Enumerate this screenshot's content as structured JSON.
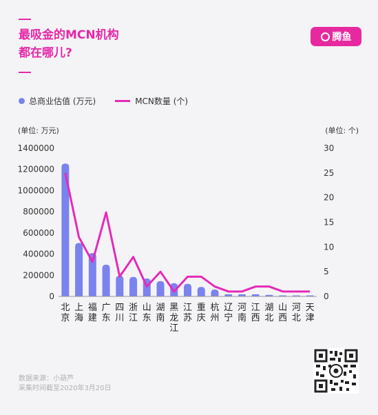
{
  "title": {
    "line1": "最吸金的MCN机构",
    "line2": "都在哪儿?"
  },
  "brand": {
    "logo_text": "腾鱼",
    "accent": "#e6299f"
  },
  "footer": {
    "source": "数据来源：小葫芦",
    "date": "采集时间截至2020年3月20日"
  },
  "chart_data": {
    "type": "bar",
    "categories": [
      "北京",
      "上海",
      "福建",
      "广东",
      "四川",
      "浙江",
      "山东",
      "湖南",
      "黑龙江",
      "江苏",
      "重庆",
      "杭州",
      "辽宁",
      "河南",
      "江西",
      "湖北",
      "山西",
      "河北",
      "天津"
    ],
    "series": [
      {
        "name": "总商业估值 (万元)",
        "type": "bar",
        "axis": "left",
        "color": "#7a83ee",
        "values": [
          1255000,
          505000,
          410000,
          300000,
          195000,
          185000,
          170000,
          145000,
          125000,
          120000,
          90000,
          65000,
          20000,
          20000,
          20000,
          15000,
          10000,
          10000,
          10000
        ]
      },
      {
        "name": "MCN数量 (个)",
        "type": "line",
        "axis": "right",
        "color": "#e629b8",
        "values": [
          25,
          12,
          7,
          17,
          4,
          8,
          2,
          5,
          1,
          4,
          4,
          2,
          1,
          1,
          2,
          2,
          1,
          1,
          1
        ]
      }
    ],
    "ylabel_left": "(单位: 万元)",
    "ylabel_right": "(单位: 个)",
    "ylim_left": [
      0,
      1400000
    ],
    "ylim_right": [
      0,
      30
    ],
    "yticks_left": [
      0,
      200000,
      400000,
      600000,
      800000,
      1000000,
      1200000,
      1400000
    ],
    "yticks_right": [
      0,
      5,
      10,
      15,
      20,
      25,
      30
    ],
    "legend_position": "top-left",
    "grid": false
  }
}
